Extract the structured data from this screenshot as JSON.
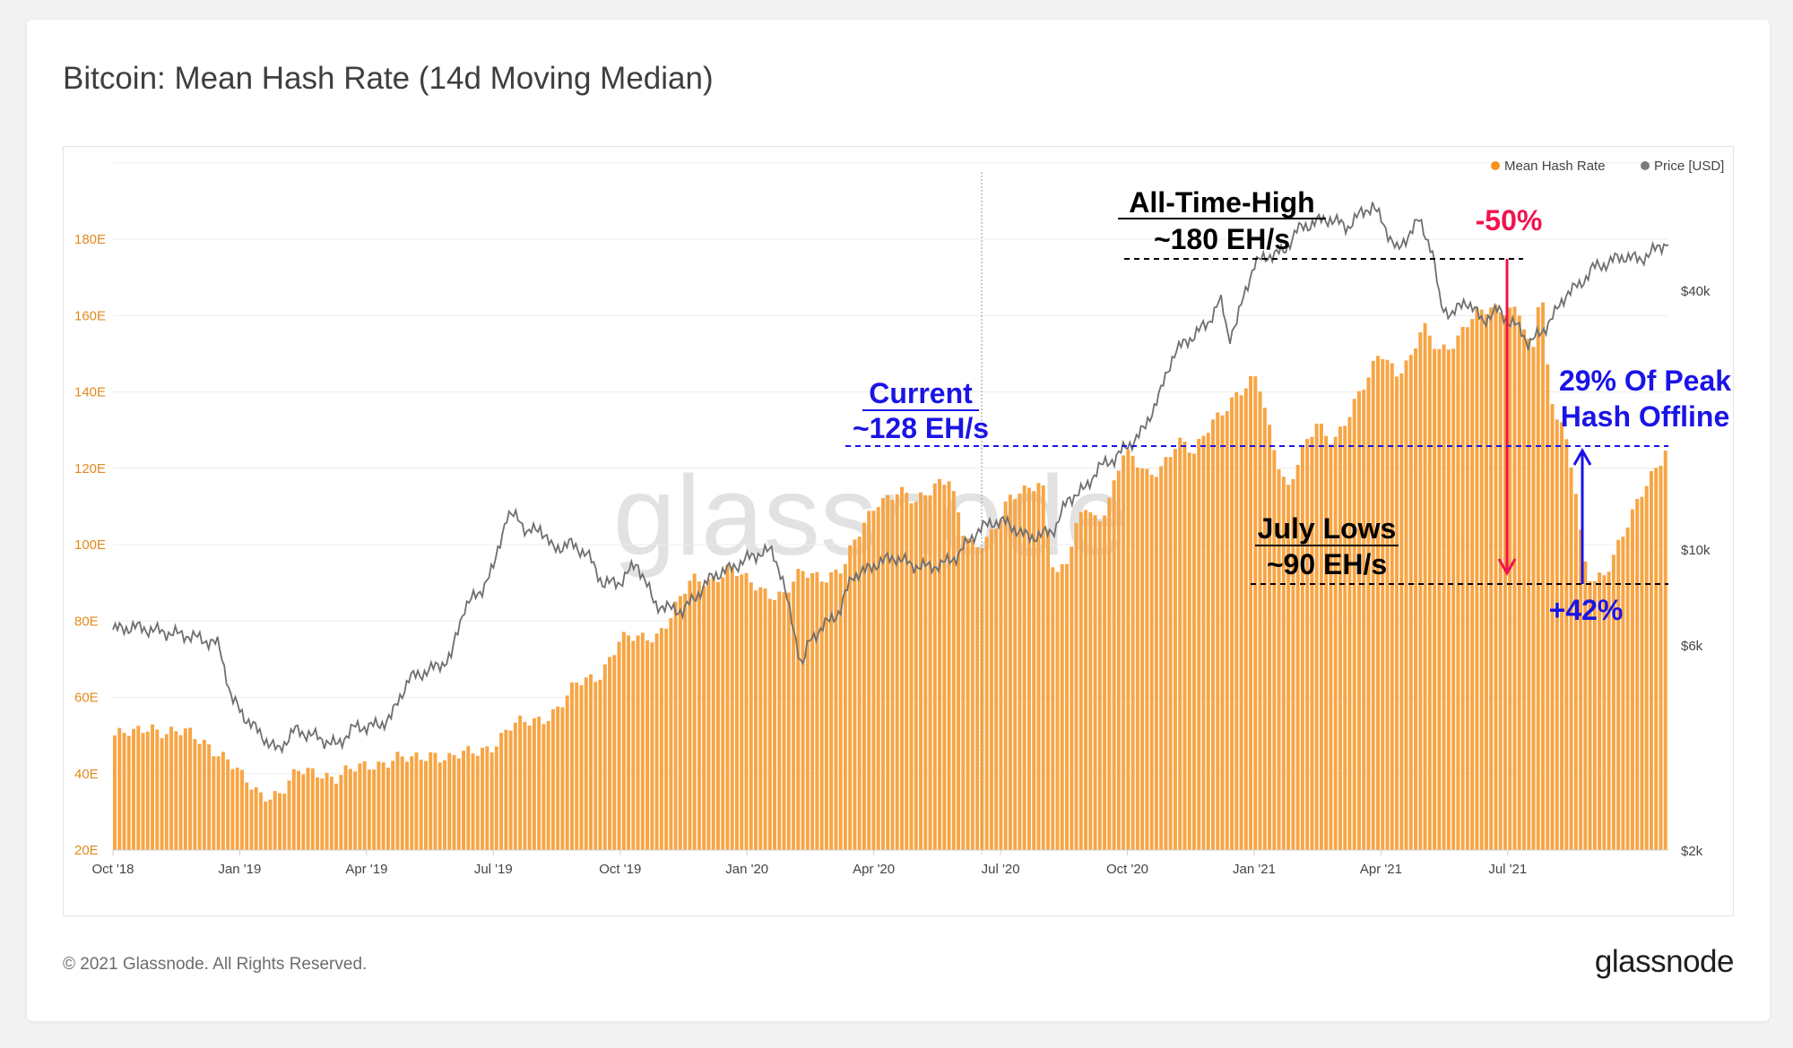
{
  "title": "Bitcoin: Mean Hash Rate (14d Moving Median)",
  "footer": {
    "copyright": "© 2021 Glassnode. All Rights Reserved.",
    "brand": "glassnode"
  },
  "watermark": "glassnode",
  "colors": {
    "hash_rate": "#f7931a",
    "price": "#7b7b7b",
    "annotation_black": "#000000",
    "annotation_blue": "#1a14e6",
    "annotation_red": "#f0144e",
    "axis_left": "#e08a1e",
    "axis_right": "#444444"
  },
  "chart_data": {
    "type": "bar",
    "title": "Bitcoin: Mean Hash Rate (14d Moving Median)",
    "legend": [
      {
        "name": "Mean Hash Rate",
        "color": "#f7931a"
      },
      {
        "name": "Price [USD]",
        "color": "#7b7b7b"
      }
    ],
    "legend_position": "top-right",
    "x_tick_labels": [
      "Oct '18",
      "Jan '19",
      "Apr '19",
      "Jul '19",
      "Oct '19",
      "Jan '20",
      "Apr '20",
      "Jul '20",
      "Oct '20",
      "Jan '21",
      "Apr '21",
      "Jul '21"
    ],
    "y_left": {
      "unit": "EH/s",
      "ticks": [
        "20E",
        "40E",
        "60E",
        "80E",
        "100E",
        "120E",
        "140E",
        "160E",
        "180E"
      ],
      "range": [
        20,
        200
      ]
    },
    "y_right": {
      "scale": "log",
      "ticks": [
        "$2k",
        "$6k",
        "$10k",
        "$40k"
      ],
      "range": [
        2000,
        80000
      ]
    },
    "x_range_months": [
      0,
      36.2
    ],
    "series": [
      {
        "name": "Mean Hash Rate",
        "kind": "bars",
        "unit": "EH/s",
        "points": [
          [
            0,
            50
          ],
          [
            0.5,
            50
          ],
          [
            0.9,
            53
          ],
          [
            1.3,
            51
          ],
          [
            1.8,
            50
          ],
          [
            2.3,
            48
          ],
          [
            2.7,
            44
          ],
          [
            3.1,
            38
          ],
          [
            3.5,
            35
          ],
          [
            4.0,
            35
          ],
          [
            4.4,
            40
          ],
          [
            4.9,
            41
          ],
          [
            5.3,
            39
          ],
          [
            5.8,
            41
          ],
          [
            6.2,
            43
          ],
          [
            6.7,
            44
          ],
          [
            7.1,
            43
          ],
          [
            7.6,
            46
          ],
          [
            8.0,
            44
          ],
          [
            8.5,
            45
          ],
          [
            9.0,
            48
          ],
          [
            9.4,
            52
          ],
          [
            9.8,
            53
          ],
          [
            10.2,
            55
          ],
          [
            10.6,
            58
          ],
          [
            11.0,
            63
          ],
          [
            11.5,
            66
          ],
          [
            12.0,
            75
          ],
          [
            12.5,
            75
          ],
          [
            12.9,
            77
          ],
          [
            13.3,
            83
          ],
          [
            13.7,
            90
          ],
          [
            14.1,
            91
          ],
          [
            14.6,
            94
          ],
          [
            15.0,
            90
          ],
          [
            15.5,
            88
          ],
          [
            15.9,
            87
          ],
          [
            16.3,
            92
          ],
          [
            16.8,
            92
          ],
          [
            17.3,
            94
          ],
          [
            17.7,
            103
          ],
          [
            18.1,
            112
          ],
          [
            18.6,
            114
          ],
          [
            19.0,
            110
          ],
          [
            19.5,
            117
          ],
          [
            19.8,
            118
          ],
          [
            20.1,
            103
          ],
          [
            20.4,
            98
          ],
          [
            20.8,
            104
          ],
          [
            21.2,
            112
          ],
          [
            21.6,
            113
          ],
          [
            22.0,
            117
          ],
          [
            22.3,
            92
          ],
          [
            22.6,
            96
          ],
          [
            23.0,
            110
          ],
          [
            23.3,
            106
          ],
          [
            23.6,
            113
          ],
          [
            23.9,
            124
          ],
          [
            24.2,
            121
          ],
          [
            24.5,
            118
          ],
          [
            24.8,
            121
          ],
          [
            25.2,
            127
          ],
          [
            25.6,
            123
          ],
          [
            26.0,
            133
          ],
          [
            26.4,
            137
          ],
          [
            26.8,
            140
          ],
          [
            27.1,
            144
          ],
          [
            27.4,
            130
          ],
          [
            27.8,
            114
          ],
          [
            28.1,
            122
          ],
          [
            28.5,
            132
          ],
          [
            28.9,
            128
          ],
          [
            29.3,
            134
          ],
          [
            29.7,
            143
          ],
          [
            30.0,
            152
          ],
          [
            30.4,
            145
          ],
          [
            30.7,
            147
          ],
          [
            31.0,
            157
          ],
          [
            31.4,
            152
          ],
          [
            31.8,
            153
          ],
          [
            32.2,
            159
          ],
          [
            32.6,
            163
          ],
          [
            33.0,
            162
          ],
          [
            33.3,
            160
          ],
          [
            33.6,
            148
          ],
          [
            33.8,
            171
          ],
          [
            34.0,
            140
          ],
          [
            34.3,
            132
          ],
          [
            34.6,
            116
          ],
          [
            34.8,
            95
          ],
          [
            35.0,
            90
          ],
          [
            35.3,
            93
          ],
          [
            35.6,
            100
          ],
          [
            36.0,
            108
          ],
          [
            36.2,
            113
          ],
          [
            36.5,
            120
          ],
          [
            36.8,
            127
          ]
        ]
      },
      {
        "name": "Price [USD]",
        "kind": "line",
        "unit": "USD",
        "points": [
          [
            0,
            6500
          ],
          [
            0.5,
            6600
          ],
          [
            0.9,
            6500
          ],
          [
            1.3,
            6400
          ],
          [
            1.8,
            6300
          ],
          [
            2.3,
            6100
          ],
          [
            2.5,
            6000
          ],
          [
            2.8,
            4500
          ],
          [
            3.1,
            4100
          ],
          [
            3.5,
            3700
          ],
          [
            3.9,
            3400
          ],
          [
            4.3,
            3800
          ],
          [
            4.7,
            3700
          ],
          [
            5.3,
            3500
          ],
          [
            5.7,
            3850
          ],
          [
            6.3,
            3900
          ],
          [
            6.6,
            4100
          ],
          [
            7.0,
            5000
          ],
          [
            7.6,
            5300
          ],
          [
            8.0,
            5600
          ],
          [
            8.3,
            7300
          ],
          [
            8.7,
            8000
          ],
          [
            9.0,
            9000
          ],
          [
            9.3,
            11800
          ],
          [
            9.6,
            12000
          ],
          [
            9.8,
            10800
          ],
          [
            10.1,
            11300
          ],
          [
            10.4,
            10000
          ],
          [
            10.8,
            10300
          ],
          [
            11.2,
            9800
          ],
          [
            11.6,
            8300
          ],
          [
            12.0,
            8400
          ],
          [
            12.4,
            9300
          ],
          [
            12.8,
            7500
          ],
          [
            13.1,
            7300
          ],
          [
            13.5,
            7200
          ],
          [
            13.9,
            8000
          ],
          [
            14.2,
            8700
          ],
          [
            14.6,
            9000
          ],
          [
            15.0,
            9500
          ],
          [
            15.3,
            9800
          ],
          [
            15.6,
            9900
          ],
          [
            15.8,
            8800
          ],
          [
            16.0,
            7200
          ],
          [
            16.3,
            5300
          ],
          [
            16.5,
            6200
          ],
          [
            16.8,
            6600
          ],
          [
            17.2,
            7200
          ],
          [
            17.5,
            8700
          ],
          [
            17.8,
            8900
          ],
          [
            18.1,
            9300
          ],
          [
            18.5,
            9600
          ],
          [
            18.9,
            9200
          ],
          [
            19.2,
            9100
          ],
          [
            19.6,
            9200
          ],
          [
            20.0,
            9700
          ],
          [
            20.4,
            10900
          ],
          [
            20.8,
            11600
          ],
          [
            21.2,
            11500
          ],
          [
            21.5,
            10800
          ],
          [
            21.9,
            10700
          ],
          [
            22.3,
            11200
          ],
          [
            22.6,
            13100
          ],
          [
            23.0,
            13800
          ],
          [
            23.3,
            15400
          ],
          [
            23.7,
            16300
          ],
          [
            24.1,
            17700
          ],
          [
            24.4,
            19000
          ],
          [
            24.8,
            23300
          ],
          [
            25.1,
            28600
          ],
          [
            25.5,
            31000
          ],
          [
            25.9,
            33500
          ],
          [
            26.2,
            38000
          ],
          [
            26.4,
            31000
          ],
          [
            26.6,
            34000
          ],
          [
            27.0,
            46000
          ],
          [
            27.4,
            48500
          ],
          [
            27.7,
            49000
          ],
          [
            28.0,
            55000
          ],
          [
            28.4,
            57500
          ],
          [
            28.8,
            58700
          ],
          [
            29.2,
            56000
          ],
          [
            29.5,
            60000
          ],
          [
            29.8,
            63000
          ],
          [
            30.1,
            56000
          ],
          [
            30.4,
            49000
          ],
          [
            30.7,
            55000
          ],
          [
            30.9,
            58000
          ],
          [
            31.2,
            50000
          ],
          [
            31.4,
            37000
          ],
          [
            31.7,
            35000
          ],
          [
            32.0,
            38000
          ],
          [
            32.4,
            34000
          ],
          [
            32.8,
            36000
          ],
          [
            33.0,
            34000
          ],
          [
            33.3,
            32500
          ],
          [
            33.5,
            30000
          ],
          [
            33.8,
            32000
          ],
          [
            34.1,
            35000
          ],
          [
            34.4,
            39500
          ],
          [
            34.7,
            41000
          ],
          [
            35.0,
            45000
          ],
          [
            35.3,
            46000
          ],
          [
            35.6,
            47500
          ],
          [
            35.8,
            48000
          ],
          [
            36.1,
            47000
          ],
          [
            36.4,
            49000
          ],
          [
            36.8,
            52000
          ]
        ]
      }
    ],
    "annotations": [
      {
        "id": "ath",
        "lines": [
          "All-Time-High",
          "~180 EH/s"
        ],
        "value": 180,
        "color": "black"
      },
      {
        "id": "drop",
        "text": "-50%",
        "color": "red"
      },
      {
        "id": "current",
        "lines": [
          "Current",
          "~128 EH/s"
        ],
        "value": 128,
        "color": "blue"
      },
      {
        "id": "offline",
        "lines": [
          "29% Of Peak",
          "Hash Offline"
        ],
        "color": "blue"
      },
      {
        "id": "july",
        "lines": [
          "July Lows",
          "~90 EH/s"
        ],
        "value": 90,
        "color": "black"
      },
      {
        "id": "rise",
        "text": "+42%",
        "color": "blue"
      }
    ]
  }
}
